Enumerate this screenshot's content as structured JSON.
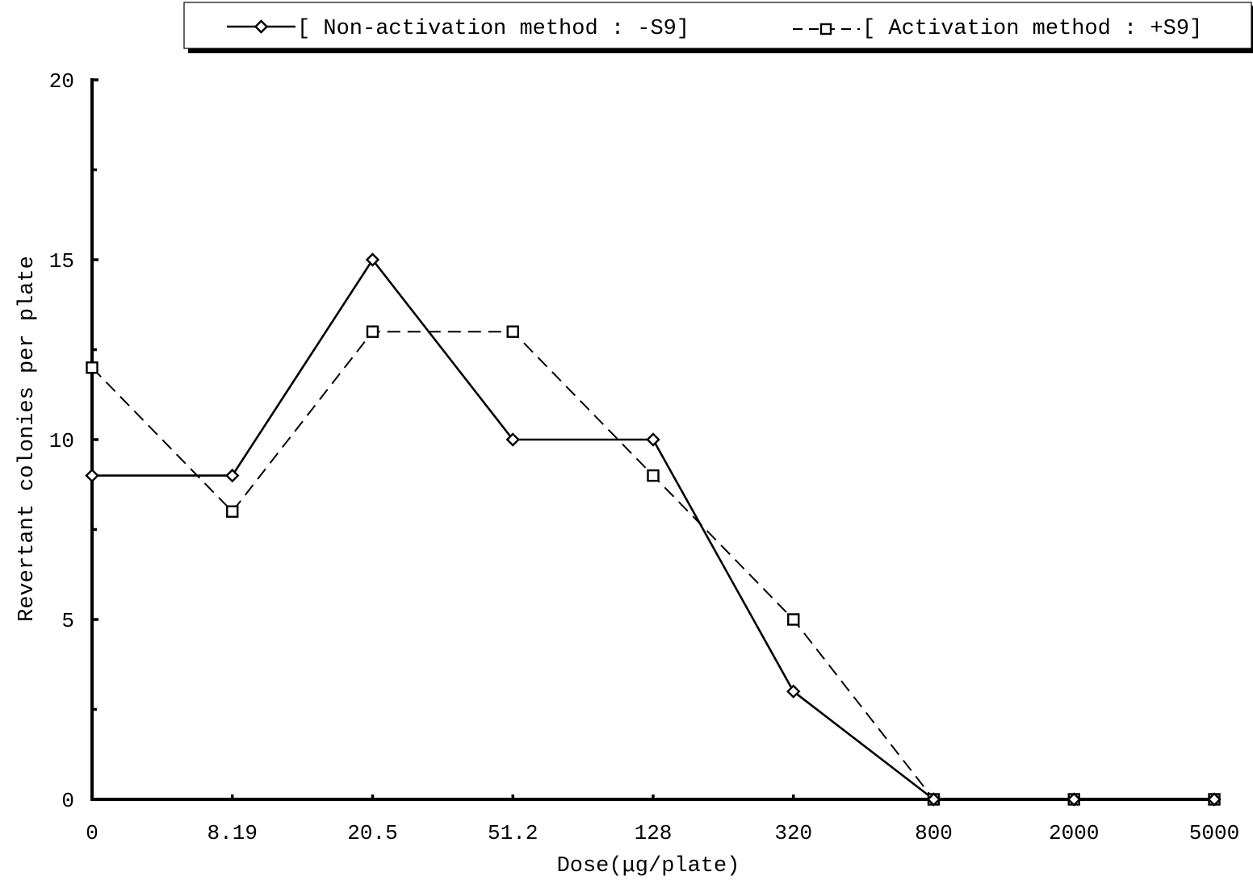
{
  "chart_data": {
    "type": "line",
    "title": "",
    "xlabel": "Dose(μg/plate)",
    "ylabel": "Revertant colonies per plate",
    "categories": [
      "0",
      "8.19",
      "20.5",
      "51.2",
      "128",
      "320",
      "800",
      "2000",
      "5000"
    ],
    "ylim": [
      0,
      20
    ],
    "yticks": [
      0,
      5,
      10,
      15,
      20
    ],
    "grid": false,
    "legend_position": "top",
    "series": [
      {
        "name": "[ Non-activation method : -S9]",
        "values": [
          9,
          9,
          15,
          10,
          10,
          3,
          0,
          0,
          0
        ],
        "marker": "diamond",
        "line_style": "solid",
        "color": "#000000"
      },
      {
        "name": "[ Activation method : +S9]",
        "values": [
          12,
          8,
          13,
          13,
          9,
          5,
          0,
          0,
          0
        ],
        "marker": "square",
        "line_style": "dashed",
        "color": "#000000"
      }
    ]
  }
}
